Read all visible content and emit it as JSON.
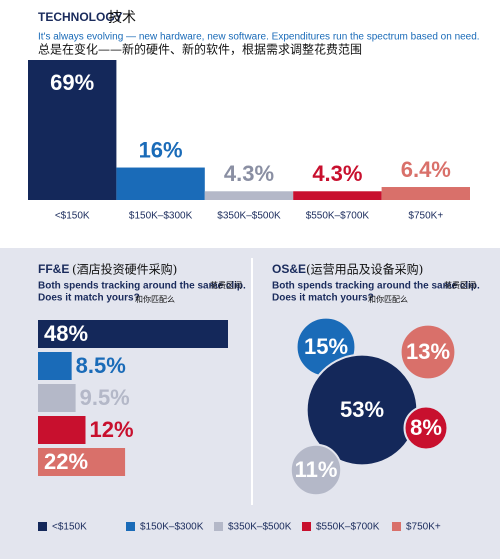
{
  "header": {
    "title": "TECHNOLOGY",
    "title_zh": "技术",
    "subtitle": "It's always evolving — new hardware, new software. Expenditures run the spectrum based on need.",
    "subtitle_zh": "总是在变化——新的硬件、新的软件，根据需求调整花费范围"
  },
  "chart_data": [
    {
      "type": "bar",
      "categories": [
        "<$150K",
        "$150K–$300K",
        "$350K–$500K",
        "$550K–$700K",
        "$750K+"
      ],
      "values": [
        69,
        16,
        4.3,
        4.3,
        6.4
      ],
      "value_labels": [
        "69%",
        "16%",
        "4.3%",
        "4.3%",
        "6.4%"
      ],
      "colors": [
        "#14285a",
        "#1a6bb8",
        "#b4b8c8",
        "#c8102e",
        "#d9706a"
      ]
    },
    {
      "type": "hbar",
      "title": "FF&E",
      "title_zh": "(酒店投资硬件采购)",
      "subtitle": "Both spends tracking around the same clip.",
      "subtitle_zh": "花费区间",
      "subtitle2": "Does it match yours?",
      "subtitle2_zh": "和你匹配么",
      "values": [
        48,
        8.5,
        9.5,
        12,
        22
      ],
      "value_labels": [
        "48%",
        "8.5%",
        "9.5%",
        "12%",
        "22%"
      ],
      "colors": [
        "#14285a",
        "#1a6bb8",
        "#b4b8c8",
        "#c8102e",
        "#d9706a"
      ]
    },
    {
      "type": "bubble",
      "title": "OS&E",
      "title_zh": "(运营用品及设备采购)",
      "subtitle": "Both spends tracking around the same clip.",
      "subtitle_zh": "花费区间",
      "subtitle2": "Does it match yours?",
      "subtitle2_zh": "和你匹配么",
      "values": [
        15,
        53,
        13,
        8,
        11
      ],
      "value_labels": [
        "15%",
        "53%",
        "13%",
        "8%",
        "11%"
      ],
      "colors": [
        "#1a6bb8",
        "#14285a",
        "#d9706a",
        "#c8102e",
        "#b4b8c8"
      ]
    }
  ]
}
